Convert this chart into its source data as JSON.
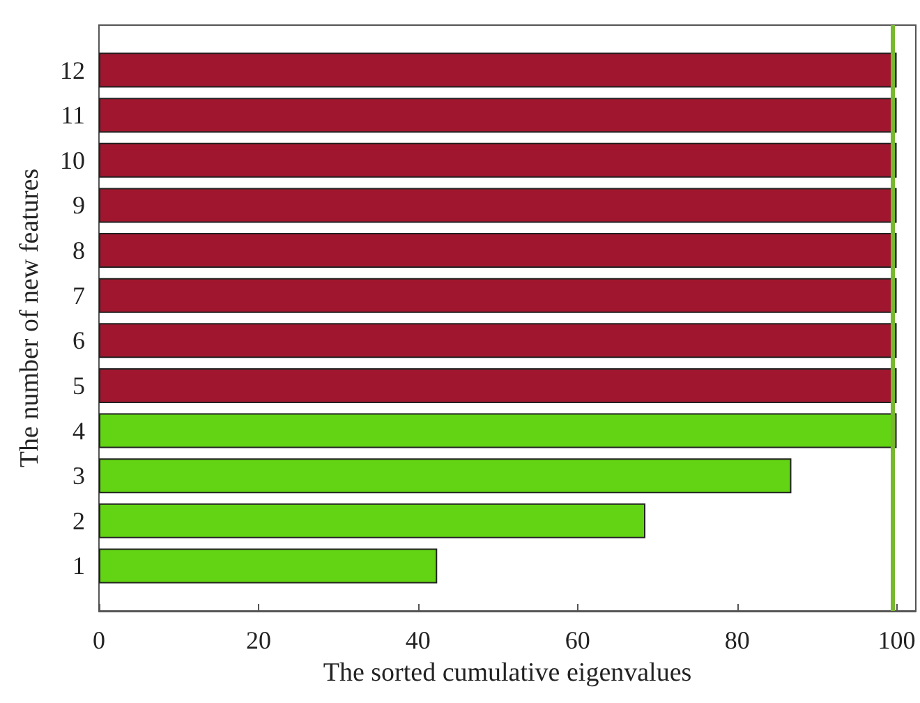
{
  "chart_data": {
    "type": "bar",
    "orientation": "horizontal",
    "xlabel": "The sorted cumulative eigenvalues",
    "ylabel": "The number of new features",
    "categories": [
      "12",
      "11",
      "10",
      "9",
      "8",
      "7",
      "6",
      "5",
      "4",
      "3",
      "2",
      "1"
    ],
    "values": [
      100,
      100,
      100,
      100,
      100,
      100,
      100,
      100,
      100,
      86.8,
      68.5,
      42.4
    ],
    "colors": [
      "#a0162e",
      "#a0162e",
      "#a0162e",
      "#a0162e",
      "#a0162e",
      "#a0162e",
      "#a0162e",
      "#a0162e",
      "#62d414",
      "#62d414",
      "#62d414",
      "#62d414"
    ],
    "xlim": [
      0,
      102.4
    ],
    "xticks": [
      0,
      20,
      40,
      60,
      80,
      100
    ],
    "ref_lines": [
      {
        "axis": "x",
        "value": 99.5,
        "color": "#77b82e"
      }
    ],
    "grid": false
  }
}
